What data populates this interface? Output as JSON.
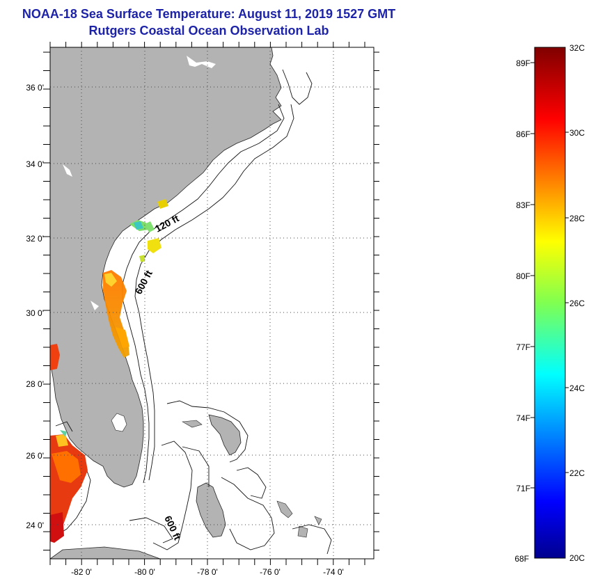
{
  "header": {
    "title": "NOAA-18 Sea Surface Temperature:  August 11, 2019 1527 GMT",
    "subtitle": "Rutgers Coastal Ocean Observation Lab"
  },
  "map": {
    "lat_labels": [
      "36 0'",
      "34 0'",
      "32 0'",
      "30 0'",
      "28 0'",
      "26 0'",
      "24 0'"
    ],
    "lon_labels": [
      "-82 0'",
      "-80 0'",
      "-78 0'",
      "-76 0'",
      "-74 0'"
    ],
    "contour_labels": [
      "120 ft",
      "600 ft",
      "600 ft"
    ],
    "colors": {
      "land": "#b3b3b3",
      "ocean": "#ffffff",
      "grid": "#444444"
    }
  },
  "colorbar": {
    "f_labels": [
      "89F",
      "86F",
      "83F",
      "80F",
      "77F",
      "74F",
      "71F",
      "68F"
    ],
    "c_labels": [
      "32C",
      "30C",
      "28C",
      "26C",
      "24C",
      "22C",
      "20C"
    ],
    "range_c": [
      20,
      32
    ]
  }
}
